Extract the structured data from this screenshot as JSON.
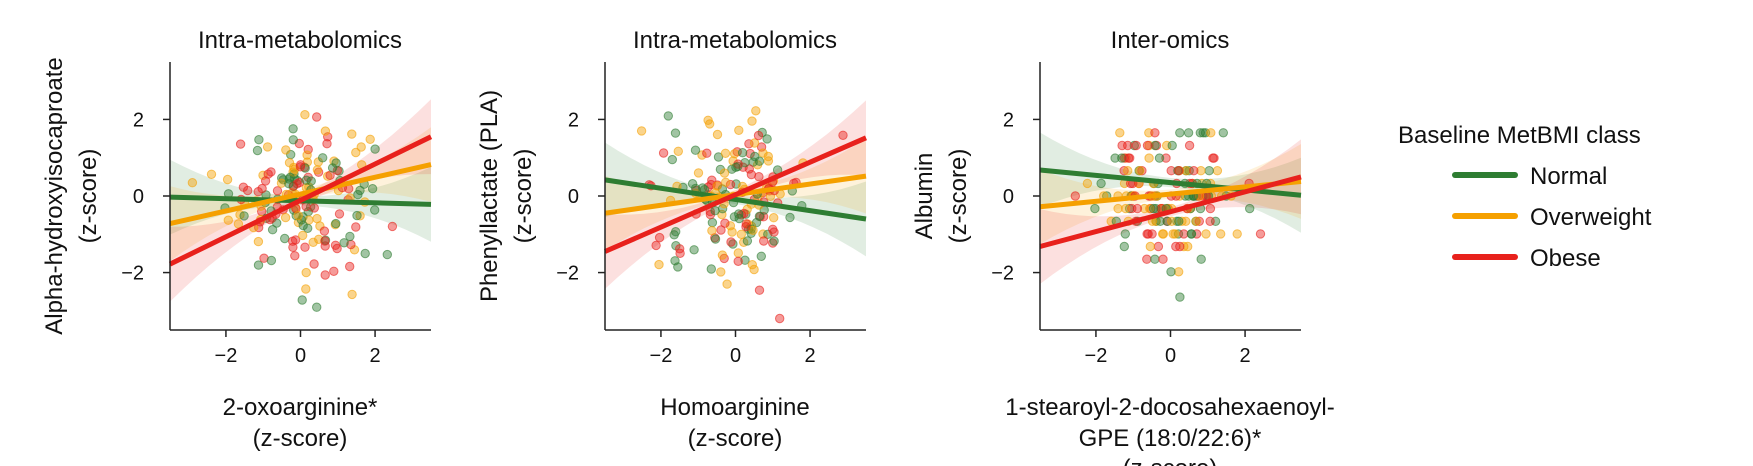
{
  "chart_data": [
    {
      "type": "scatter",
      "title": "Intra-metabolomics",
      "xlabel": [
        "2-oxoarginine*",
        "(z-score)"
      ],
      "ylabel": [
        "Alpha-hydroxyisocaproate",
        "(z-score)"
      ],
      "xlim": [
        -3.5,
        3.5
      ],
      "ylim": [
        -3.5,
        3.5
      ],
      "xticks": [
        -2,
        0,
        2
      ],
      "yticks": [
        -2,
        0,
        2
      ],
      "tick_labels": [
        "−2",
        "0",
        "2"
      ],
      "scatter_spread": {
        "x_sd": 0.95,
        "y_sd": 0.95,
        "n_points": 180
      },
      "series": [
        {
          "name": "Normal",
          "color": "#2e7d32",
          "line": [
            [
              -3.5,
              -0.03
            ],
            [
              3.5,
              -0.22
            ]
          ]
        },
        {
          "name": "Overweight",
          "color": "#f5a000",
          "line": [
            [
              -3.5,
              -0.72
            ],
            [
              3.5,
              0.82
            ]
          ]
        },
        {
          "name": "Obese",
          "color": "#e8211c",
          "line": [
            [
              -3.5,
              -1.78
            ],
            [
              3.5,
              1.55
            ]
          ]
        }
      ]
    },
    {
      "type": "scatter",
      "title": "Intra-metabolomics",
      "xlabel": [
        "Homoarginine",
        "(z-score)"
      ],
      "ylabel": [
        "Phenyllactate (PLA)",
        "(z-score)"
      ],
      "xlim": [
        -3.5,
        3.5
      ],
      "ylim": [
        -3.5,
        3.5
      ],
      "xticks": [
        -2,
        0,
        2
      ],
      "yticks": [
        -2,
        0,
        2
      ],
      "tick_labels": [
        "−2",
        "0",
        "2"
      ],
      "scatter_spread": {
        "x_sd": 0.95,
        "y_sd": 0.95,
        "n_points": 180
      },
      "series": [
        {
          "name": "Normal",
          "color": "#2e7d32",
          "line": [
            [
              -3.5,
              0.42
            ],
            [
              3.5,
              -0.6
            ]
          ]
        },
        {
          "name": "Overweight",
          "color": "#f5a000",
          "line": [
            [
              -3.5,
              -0.45
            ],
            [
              3.5,
              0.52
            ]
          ]
        },
        {
          "name": "Obese",
          "color": "#e8211c",
          "line": [
            [
              -3.5,
              -1.45
            ],
            [
              3.5,
              1.52
            ]
          ]
        }
      ]
    },
    {
      "type": "scatter",
      "title": "Inter-omics",
      "xlabel": [
        "1-stearoyl-2-docosahexaenoyl-",
        "GPE (18:0/22:6)*",
        "(z-score)"
      ],
      "ylabel": [
        "Albumin",
        "(z-score)"
      ],
      "xlim": [
        -3.5,
        3.5
      ],
      "ylim": [
        -3.5,
        3.5
      ],
      "xticks": [
        -2,
        0,
        2
      ],
      "yticks": [
        -2,
        0,
        2
      ],
      "tick_labels": [
        "−2",
        "0",
        "2"
      ],
      "scatter_spread": {
        "x_sd": 0.95,
        "y_sd": 0.85,
        "n_points": 180,
        "y_discrete": 0.33
      },
      "series": [
        {
          "name": "Normal",
          "color": "#2e7d32",
          "line": [
            [
              -3.5,
              0.68
            ],
            [
              3.5,
              0.02
            ]
          ]
        },
        {
          "name": "Overweight",
          "color": "#f5a000",
          "line": [
            [
              -3.5,
              -0.28
            ],
            [
              3.5,
              0.38
            ]
          ]
        },
        {
          "name": "Obese",
          "color": "#e8211c",
          "line": [
            [
              -3.5,
              -1.32
            ],
            [
              3.5,
              0.5
            ]
          ]
        }
      ]
    }
  ],
  "legend": {
    "title": "Baseline MetBMI class",
    "items": [
      {
        "label": "Normal",
        "color": "#2e7d32"
      },
      {
        "label": "Overweight",
        "color": "#f5a000"
      },
      {
        "label": "Obese",
        "color": "#e8211c"
      }
    ]
  }
}
